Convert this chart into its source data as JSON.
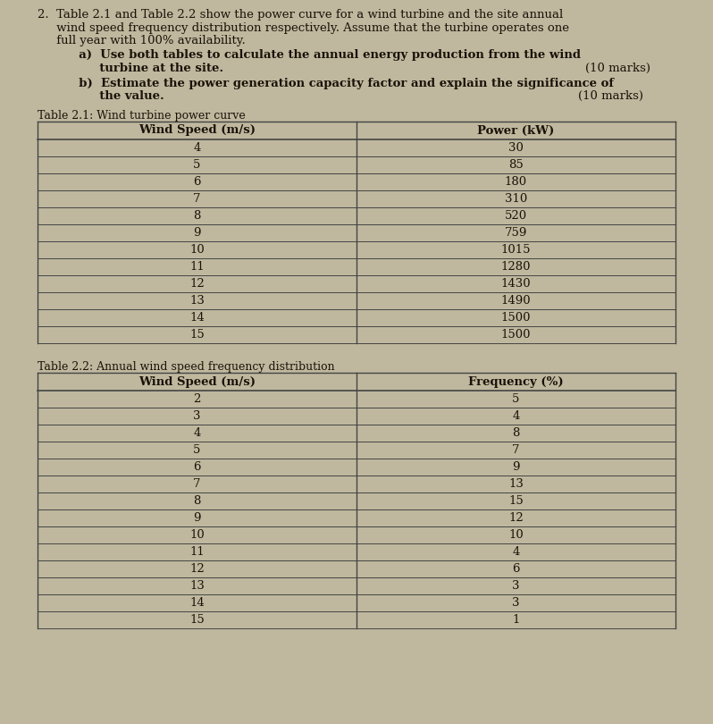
{
  "q_line1": "2.  Table 2.1 and Table 2.2 show the power curve for a wind turbine and the site annual",
  "q_line2": "     wind speed frequency distribution respectively. Assume that the turbine operates one",
  "q_line3": "     full year with 100% availability.",
  "q_line4a1": "          a)  Use both tables to calculate the annual energy production from the wind",
  "q_line4a2": "               turbine at the site.",
  "q_line4a3": "(10 marks)",
  "q_line4b1": "          b)  Estimate the power generation capacity factor and explain the significance of",
  "q_line4b2": "               the value.",
  "q_line4b3": "(10 marks)",
  "table1_title": "Table 2.1: Wind turbine power curve",
  "table1_col1": "Wind Speed (m/s)",
  "table1_col2": "Power (kW)",
  "table1_data": [
    [
      4,
      30
    ],
    [
      5,
      85
    ],
    [
      6,
      180
    ],
    [
      7,
      310
    ],
    [
      8,
      520
    ],
    [
      9,
      759
    ],
    [
      10,
      1015
    ],
    [
      11,
      1280
    ],
    [
      12,
      1430
    ],
    [
      13,
      1490
    ],
    [
      14,
      1500
    ],
    [
      15,
      1500
    ]
  ],
  "table2_title": "Table 2.2: Annual wind speed frequency distribution",
  "table2_col1": "Wind Speed (m/s)",
  "table2_col2": "Frequency (%)",
  "table2_data": [
    [
      2,
      5
    ],
    [
      3,
      4
    ],
    [
      4,
      8
    ],
    [
      5,
      7
    ],
    [
      6,
      9
    ],
    [
      7,
      13
    ],
    [
      8,
      15
    ],
    [
      9,
      12
    ],
    [
      10,
      10
    ],
    [
      11,
      4
    ],
    [
      12,
      6
    ],
    [
      13,
      3
    ],
    [
      14,
      3
    ],
    [
      15,
      1
    ]
  ],
  "bg_color": "#bfb89e",
  "text_color": "#1a1208",
  "line_color": "#444444",
  "font_size_body": 9.5,
  "font_size_table": 9.5,
  "font_size_title": 9.0
}
